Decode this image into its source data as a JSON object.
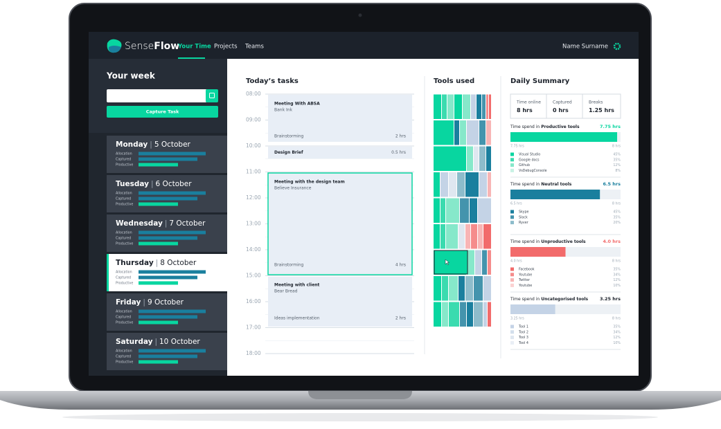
{
  "nav": {
    "brand_light": "Sense",
    "brand_bold": "Flow",
    "links": [
      "Your Time",
      "Projects",
      "Teams"
    ],
    "user": "Name Surname"
  },
  "sidebar": {
    "title": "Your week",
    "button": "Capture Task",
    "separator": "|",
    "bar_labels": [
      "Allocation",
      "Captured",
      "Productive"
    ],
    "days": [
      {
        "day": "Monday",
        "date": "5 October"
      },
      {
        "day": "Tuesday",
        "date": "6 October"
      },
      {
        "day": "Wednesday",
        "date": "7 October"
      },
      {
        "day": "Thursday",
        "date": "8 October"
      },
      {
        "day": "Friday",
        "date": "9 October"
      },
      {
        "day": "Saturday",
        "date": "10 October"
      }
    ]
  },
  "tasks": {
    "title": "Today’s tasks",
    "hours": [
      "08:00",
      "09:00",
      "10:00",
      "11:00",
      "12:00",
      "13:00",
      "14:00",
      "15:00",
      "16:00",
      "17:00",
      "18:00"
    ],
    "items": [
      {
        "title": "Meeting With ABSA",
        "client": "Bank Ink",
        "sub": "Brainstorming",
        "duration": "2 hrs"
      },
      {
        "title": "Design Brief",
        "duration": "0.5 hrs"
      },
      {
        "title": "Meeting with the design team",
        "client": "Believe Insurance",
        "sub": "Brainstorming",
        "duration": "4 hrs"
      },
      {
        "title": "Meeting with client",
        "client": "Bear Bread",
        "sub": "Ideas implementation",
        "duration": "2 hrs"
      }
    ]
  },
  "tools": {
    "title": "Tools used"
  },
  "summary": {
    "title": "Daily Summary",
    "stats": [
      {
        "label": "Time online",
        "value": "8 hrs"
      },
      {
        "label": "Captured",
        "value": "0 hrs"
      },
      {
        "label": "Breaks",
        "value": "1.25 hrs"
      }
    ],
    "prefix": "Time spend in",
    "sections": [
      {
        "name": "Productive tools",
        "color": "#08d6a0",
        "total": {
          "value": 7.75,
          "label": "7.75 hrs"
        },
        "max": {
          "value": 8,
          "label": "8 hrs"
        },
        "tools": [
          {
            "name": "Visual Studio",
            "share": "45%",
            "color": "#08d6a0"
          },
          {
            "name": "Google docs",
            "share": "35%",
            "color": "#3adbaf"
          },
          {
            "name": "Github",
            "share": "12%",
            "color": "#86e8ca"
          },
          {
            "name": "VsDebugConsole",
            "share": "8%",
            "color": "#c8f2e4"
          }
        ]
      },
      {
        "name": "Neutral tools",
        "color": "#1a7f9e",
        "total": {
          "value": 6.5,
          "label": "6.5 hrs"
        },
        "max": {
          "value": 8,
          "label": "8 hrs"
        },
        "tools": [
          {
            "name": "Skype",
            "share": "45%",
            "color": "#1a7f9e"
          },
          {
            "name": "Slack",
            "share": "35%",
            "color": "#4494ad"
          },
          {
            "name": "Ryver",
            "share": "20%",
            "color": "#8dbccb"
          }
        ]
      },
      {
        "name": "Unproductive tools",
        "color": "#f26b6b",
        "total": {
          "value": 4.0,
          "label": "4.0 hrs"
        },
        "max": {
          "value": 8,
          "label": "8 hrs"
        },
        "tools": [
          {
            "name": "Facebook",
            "share": "35%",
            "color": "#f26b6b"
          },
          {
            "name": "Youtube",
            "share": "34%",
            "color": "#f58c8c"
          },
          {
            "name": "Twitter",
            "share": "12%",
            "color": "#f8b5b5"
          },
          {
            "name": "Youtube",
            "share": "10%",
            "color": "#fbd2d2"
          }
        ]
      },
      {
        "name": "Uncategorised tools",
        "color": "#c4d3e6",
        "total": {
          "value": 3.25,
          "label": "3.25 hrs"
        },
        "max": {
          "value": 8,
          "label": "8 hrs"
        },
        "tools": [
          {
            "name": "Tool 1",
            "share": "35%",
            "color": "#c4d3e6"
          },
          {
            "name": "Tool 2",
            "share": "34%",
            "color": "#d3dfec"
          },
          {
            "name": "Tool 3",
            "share": "12%",
            "color": "#dfe7f0"
          },
          {
            "name": "Tool 4",
            "share": "10%",
            "color": "#e9eef5"
          }
        ]
      }
    ]
  }
}
